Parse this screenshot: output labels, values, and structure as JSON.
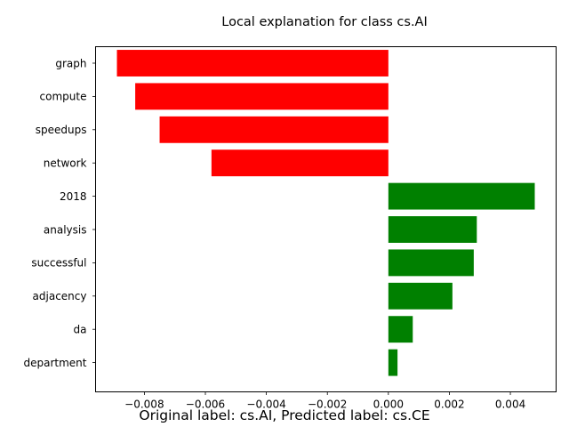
{
  "chart_data": {
    "type": "bar",
    "orientation": "horizontal",
    "title": "Local explanation for class cs.AI",
    "caption": "Original label: cs.AI, Predicted label: cs.CE",
    "categories": [
      "graph",
      "compute",
      "speedups",
      "network",
      "2018",
      "analysis",
      "successful",
      "adjacency",
      "da",
      "department"
    ],
    "values": [
      -0.0089,
      -0.0083,
      -0.0075,
      -0.0058,
      0.0048,
      0.0029,
      0.0028,
      0.0021,
      0.0008,
      0.0003
    ],
    "xlim": [
      -0.0096,
      0.0055
    ],
    "xticks": [
      -0.008,
      -0.006,
      -0.004,
      -0.002,
      0.0,
      0.002,
      0.004
    ],
    "xtick_labels": [
      "−0.008",
      "−0.006",
      "−0.004",
      "−0.002",
      "0.000",
      "0.002",
      "0.004"
    ],
    "grid": false,
    "colors": {
      "negative": "#ff0000",
      "positive": "#008000"
    }
  }
}
